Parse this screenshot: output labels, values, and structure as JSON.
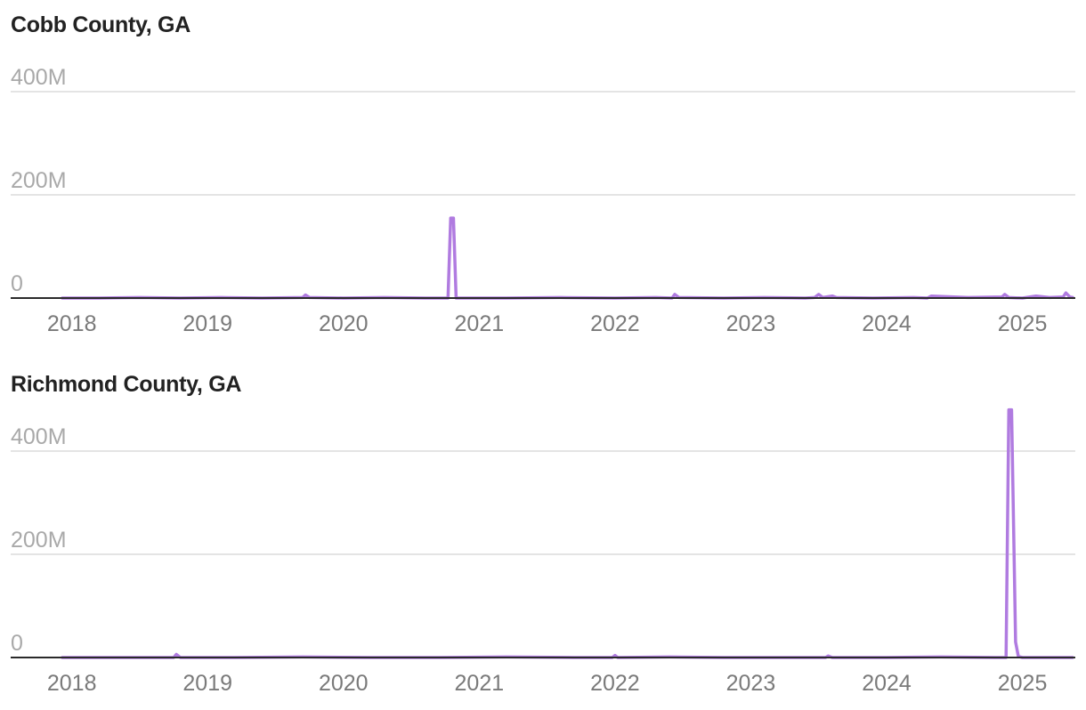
{
  "chart_data": [
    {
      "type": "line",
      "title": "Cobb County, GA",
      "ylim": [
        0,
        400000000
      ],
      "y_ticks": [
        "0",
        "200M",
        "400M"
      ],
      "y_tick_values": [
        0,
        200000000,
        400000000
      ],
      "xlim": [
        2017.93,
        2025.37
      ],
      "x_ticks": [
        "2018",
        "2019",
        "2020",
        "2021",
        "2022",
        "2023",
        "2024",
        "2025"
      ],
      "x_tick_values": [
        2018,
        2019,
        2020,
        2021,
        2022,
        2023,
        2024,
        2025
      ],
      "grid": true,
      "color": "#b07be0",
      "series": [
        {
          "x": [
            2017.93,
            2018.2,
            2018.5,
            2018.8,
            2019.1,
            2019.4,
            2019.7,
            2019.72,
            2019.75,
            2020.0,
            2020.3,
            2020.6,
            2020.77,
            2020.79,
            2020.81,
            2020.83,
            2020.86,
            2021.2,
            2021.6,
            2022.0,
            2022.3,
            2022.42,
            2022.44,
            2022.47,
            2022.8,
            2023.1,
            2023.4,
            2023.47,
            2023.5,
            2023.53,
            2023.6,
            2023.63,
            2023.9,
            2024.2,
            2024.3,
            2024.33,
            2024.6,
            2024.85,
            2024.87,
            2024.9,
            2025.0,
            2025.1,
            2025.2,
            2025.3,
            2025.32,
            2025.35,
            2025.37
          ],
          "y": [
            0,
            0,
            1000000,
            0,
            1000000,
            0,
            1000000,
            6000000,
            1000000,
            0,
            1000000,
            0,
            0,
            155000000,
            155000000,
            0,
            0,
            0,
            1000000,
            0,
            1000000,
            0,
            7000000,
            1000000,
            0,
            1000000,
            0,
            1000000,
            7000000,
            1000000,
            4000000,
            1000000,
            0,
            1000000,
            0,
            4000000,
            1000000,
            2000000,
            7000000,
            1000000,
            0,
            4000000,
            1000000,
            2000000,
            10000000,
            2000000,
            1000000
          ]
        }
      ]
    },
    {
      "type": "line",
      "title": "Richmond County, GA",
      "ylim": [
        0,
        400000000
      ],
      "y_ticks": [
        "0",
        "200M",
        "400M"
      ],
      "y_tick_values": [
        0,
        200000000,
        400000000
      ],
      "xlim": [
        2017.93,
        2025.37
      ],
      "x_ticks": [
        "2018",
        "2019",
        "2020",
        "2021",
        "2022",
        "2023",
        "2024",
        "2025"
      ],
      "x_tick_values": [
        2018,
        2019,
        2020,
        2021,
        2022,
        2023,
        2024,
        2025
      ],
      "grid": true,
      "color": "#b07be0",
      "series": [
        {
          "x": [
            2017.93,
            2018.5,
            2018.75,
            2018.77,
            2018.8,
            2019.2,
            2019.7,
            2020.2,
            2020.7,
            2021.2,
            2021.7,
            2021.98,
            2022.0,
            2022.02,
            2022.4,
            2022.8,
            2023.2,
            2023.55,
            2023.57,
            2023.6,
            2024.0,
            2024.4,
            2024.8,
            2024.88,
            2024.9,
            2024.92,
            2024.95,
            2024.97,
            2025.0,
            2025.2,
            2025.37
          ],
          "y": [
            0,
            0,
            0,
            6000000,
            0,
            0,
            1000000,
            0,
            0,
            1000000,
            0,
            0,
            4000000,
            0,
            1000000,
            0,
            0,
            0,
            3000000,
            0,
            0,
            1000000,
            0,
            0,
            480000000,
            480000000,
            30000000,
            2000000,
            0,
            0,
            0
          ]
        }
      ]
    }
  ]
}
